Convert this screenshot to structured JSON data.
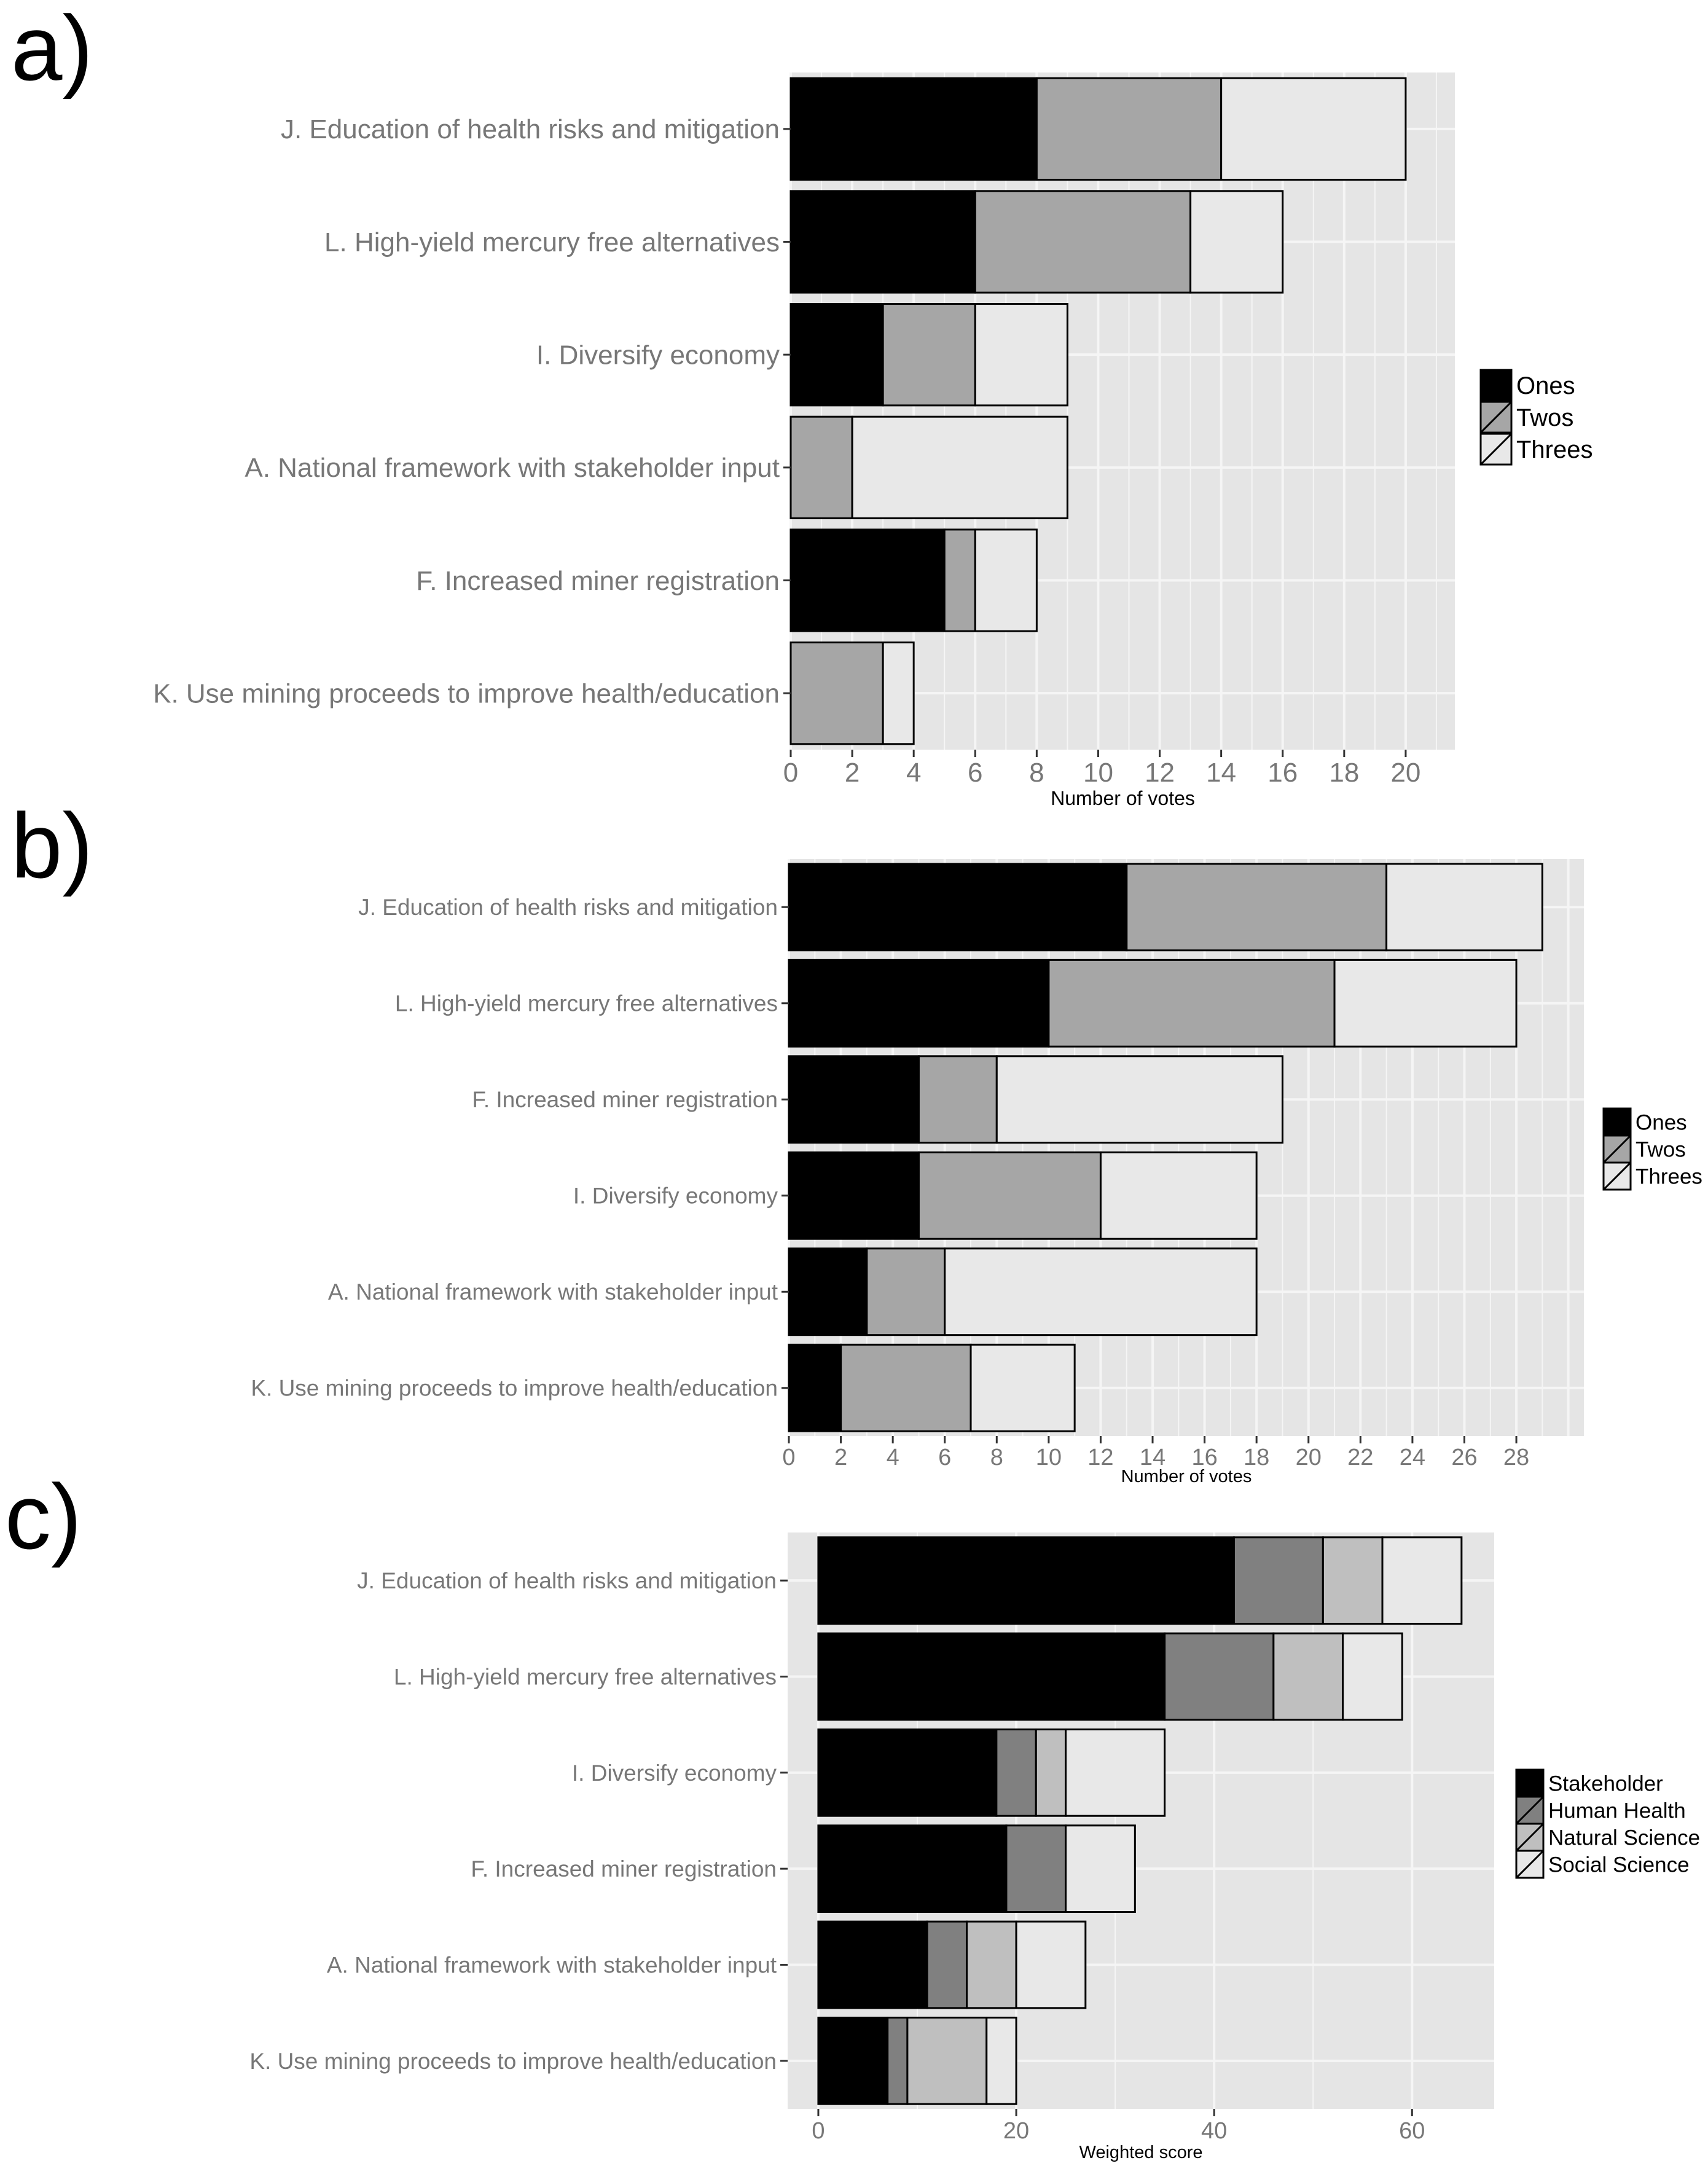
{
  "panels": [
    {
      "label": "a)"
    },
    {
      "label": "b)"
    },
    {
      "label": "c)"
    }
  ],
  "colors": {
    "panel_bg": "#e5e5e5",
    "grid": "#f5f5f5",
    "label_text": "#777777",
    "black": "#000000",
    "dark_gray": "#808080",
    "mid_gray": "#a6a6a6",
    "light_gray": "#bfbfbf",
    "very_light": "#e8e8e8"
  },
  "chart_data": [
    {
      "type": "bar",
      "orientation": "horizontal",
      "stacked": true,
      "panel": "a)",
      "categories": [
        "J. Education of health risks and mitigation",
        "L. High-yield mercury free alternatives",
        "I. Diversify economy",
        "A. National framework with stakeholder input",
        "F. Increased miner registration",
        "K. Use mining proceeds to improve health/education"
      ],
      "series": [
        {
          "name": "Ones",
          "values": [
            8,
            6,
            3,
            0,
            5,
            0
          ]
        },
        {
          "name": "Twos",
          "values": [
            6,
            7,
            3,
            2,
            1,
            3
          ]
        },
        {
          "name": "Threes",
          "values": [
            6,
            3,
            3,
            7,
            2,
            1
          ]
        }
      ],
      "xlabel": "Number of votes",
      "xlim": [
        0,
        21.6
      ],
      "xticks": [
        0,
        2,
        4,
        6,
        8,
        10,
        12,
        14,
        16,
        18,
        20
      ],
      "legend": {
        "position": "right",
        "entries": [
          "Ones",
          "Twos",
          "Threes"
        ]
      },
      "grid": true
    },
    {
      "type": "bar",
      "orientation": "horizontal",
      "stacked": true,
      "panel": "b)",
      "categories": [
        "J. Education of health risks and mitigation",
        "L. High-yield mercury free alternatives",
        "F. Increased miner registration",
        "I. Diversify economy",
        "A. National framework with stakeholder input",
        "K. Use mining proceeds to improve health/education"
      ],
      "series": [
        {
          "name": "Ones",
          "values": [
            13,
            10,
            5,
            5,
            3,
            2
          ]
        },
        {
          "name": "Twos",
          "values": [
            10,
            11,
            3,
            7,
            3,
            5
          ]
        },
        {
          "name": "Threes",
          "values": [
            6,
            7,
            11,
            6,
            12,
            4
          ]
        }
      ],
      "xlabel": "Number of votes",
      "xlim": [
        0,
        30.6
      ],
      "xticks": [
        0,
        2,
        4,
        6,
        8,
        10,
        12,
        14,
        16,
        18,
        20,
        22,
        24,
        26,
        28
      ],
      "legend": {
        "position": "right",
        "entries": [
          "Ones",
          "Twos",
          "Threes"
        ]
      },
      "grid": true
    },
    {
      "type": "bar",
      "orientation": "horizontal",
      "stacked": true,
      "panel": "c)",
      "categories": [
        "J. Education of health risks and mitigation",
        "L. High-yield mercury free alternatives",
        "I. Diversify economy",
        "F. Increased miner registration",
        "A. National framework with stakeholder input",
        "K. Use mining proceeds to improve health/education"
      ],
      "series": [
        {
          "name": "Stakeholder",
          "values": [
            42,
            35,
            18,
            19,
            11,
            7
          ]
        },
        {
          "name": "Human Health",
          "values": [
            9,
            11,
            4,
            6,
            4,
            2
          ]
        },
        {
          "name": "Natural Science",
          "values": [
            6,
            7,
            3,
            0,
            5,
            8
          ]
        },
        {
          "name": "Social Science",
          "values": [
            8,
            6,
            10,
            7,
            7,
            3
          ]
        }
      ],
      "xlabel": "Weighted score",
      "xlim": [
        -3.1,
        68.3
      ],
      "xticks": [
        0,
        20,
        40,
        60
      ],
      "legend": {
        "position": "right",
        "entries": [
          "Stakeholder",
          "Human Health",
          "Natural Science",
          "Social Science"
        ]
      },
      "grid": true
    }
  ]
}
